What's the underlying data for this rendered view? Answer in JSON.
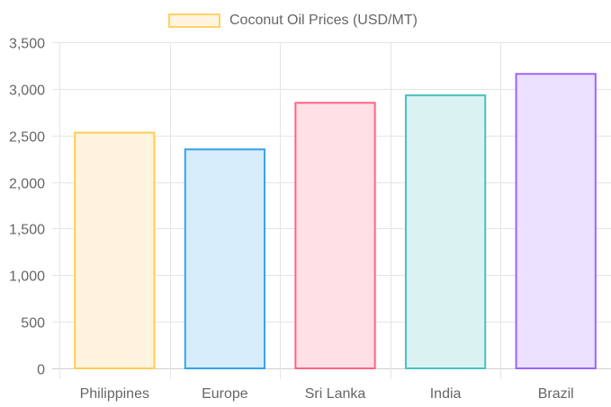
{
  "chart_data": {
    "type": "bar",
    "title": "",
    "xlabel": "",
    "ylabel": "",
    "categories": [
      "Philippines",
      "Europe",
      "Sri Lanka",
      "India",
      "Brazil"
    ],
    "series": [
      {
        "name": "Coconut Oil Prices (USD/MT)",
        "values": [
          2530,
          2350,
          2850,
          2930,
          3160
        ]
      }
    ],
    "ylim": [
      0,
      3500
    ],
    "yticks": [
      0,
      500,
      1000,
      1500,
      2000,
      2500,
      3000,
      3500
    ],
    "ytick_labels": [
      "0",
      "500",
      "1,000",
      "1,500",
      "2,000",
      "2,500",
      "3,000",
      "3,500"
    ],
    "grid": true,
    "legend_position": "top",
    "colors": {
      "fill": [
        "#fff4de",
        "#d7ecfb",
        "#ffe0e6",
        "#dbf2f2",
        "#ebe0ff"
      ],
      "border": [
        "#ffcd56",
        "#36a2eb",
        "#ff6384",
        "#4bc0c0",
        "#9966ff"
      ]
    }
  },
  "legend": {
    "label": "Coconut Oil Prices (USD/MT)"
  }
}
